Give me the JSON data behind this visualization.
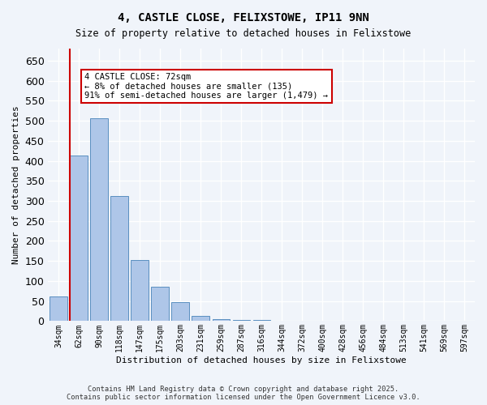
{
  "title1": "4, CASTLE CLOSE, FELIXSTOWE, IP11 9NN",
  "title2": "Size of property relative to detached houses in Felixstowe",
  "xlabel": "Distribution of detached houses by size in Felixstowe",
  "ylabel": "Number of detached properties",
  "categories": [
    "34sqm",
    "62sqm",
    "90sqm",
    "118sqm",
    "147sqm",
    "175sqm",
    "203sqm",
    "231sqm",
    "259sqm",
    "287sqm",
    "316sqm",
    "344sqm",
    "372sqm",
    "400sqm",
    "428sqm",
    "456sqm",
    "484sqm",
    "513sqm",
    "541sqm",
    "569sqm",
    "597sqm"
  ],
  "values": [
    62,
    413,
    506,
    312,
    153,
    85,
    47,
    12,
    5,
    3,
    2,
    1,
    1,
    1,
    0,
    0,
    0,
    0,
    0,
    0,
    0
  ],
  "bar_color": "#aec6e8",
  "bar_edge_color": "#5a8fc0",
  "red_line_index": 1,
  "annotation_text": "4 CASTLE CLOSE: 72sqm\n← 8% of detached houses are smaller (135)\n91% of semi-detached houses are larger (1,479) →",
  "annotation_box_color": "#ffffff",
  "annotation_box_edge": "#cc0000",
  "ylim": [
    0,
    680
  ],
  "yticks": [
    0,
    50,
    100,
    150,
    200,
    250,
    300,
    350,
    400,
    450,
    500,
    550,
    600,
    650
  ],
  "footer1": "Contains HM Land Registry data © Crown copyright and database right 2025.",
  "footer2": "Contains public sector information licensed under the Open Government Licence v3.0.",
  "bg_color": "#f0f4fa",
  "grid_color": "#ffffff"
}
